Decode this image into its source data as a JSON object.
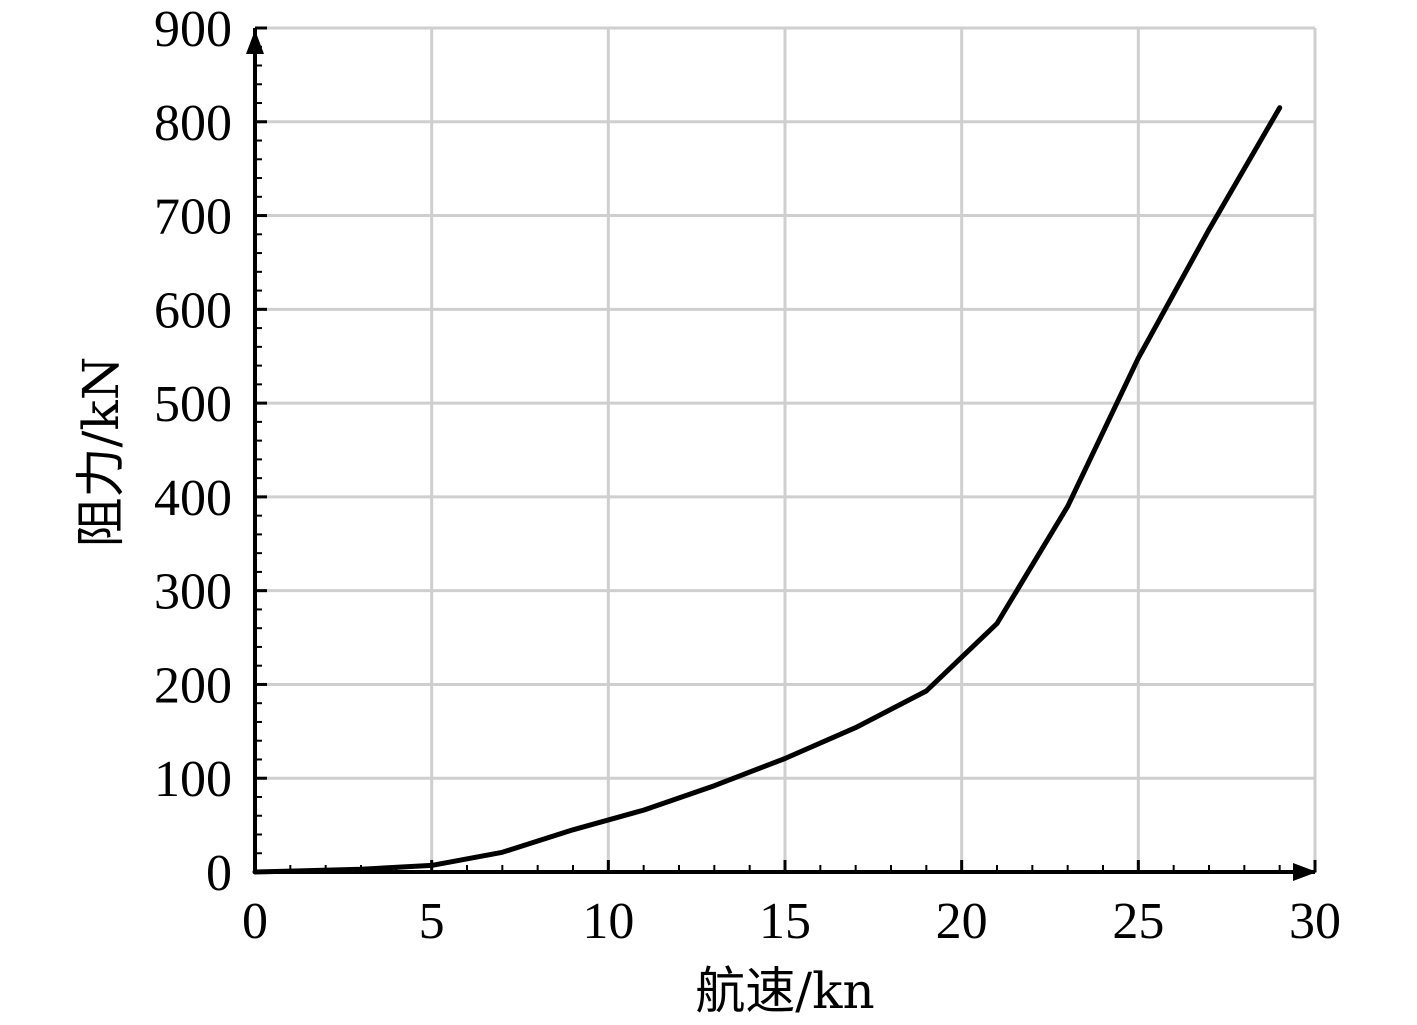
{
  "chart_data": {
    "type": "line",
    "xlabel": "航速/kn",
    "ylabel": "阻力/kN",
    "xlim": [
      0,
      30
    ],
    "ylim": [
      0,
      900
    ],
    "x_ticks": [
      "0",
      "5",
      "10",
      "15",
      "20",
      "25",
      "30"
    ],
    "y_ticks": [
      "0",
      "100",
      "200",
      "300",
      "400",
      "500",
      "600",
      "700",
      "800",
      "900"
    ],
    "x_tick_values": [
      0,
      5,
      10,
      15,
      20,
      25,
      30
    ],
    "y_tick_values": [
      0,
      100,
      200,
      300,
      400,
      500,
      600,
      700,
      800,
      900
    ],
    "grid": true,
    "series": [
      {
        "x": [
          0,
          1,
          3,
          5,
          7,
          9,
          11,
          13,
          15,
          17,
          19,
          21,
          23,
          25,
          27,
          29
        ],
        "y": [
          0,
          1,
          3,
          7,
          21,
          45,
          66,
          92,
          121,
          154,
          193,
          265,
          390,
          548,
          685,
          815
        ]
      }
    ]
  }
}
